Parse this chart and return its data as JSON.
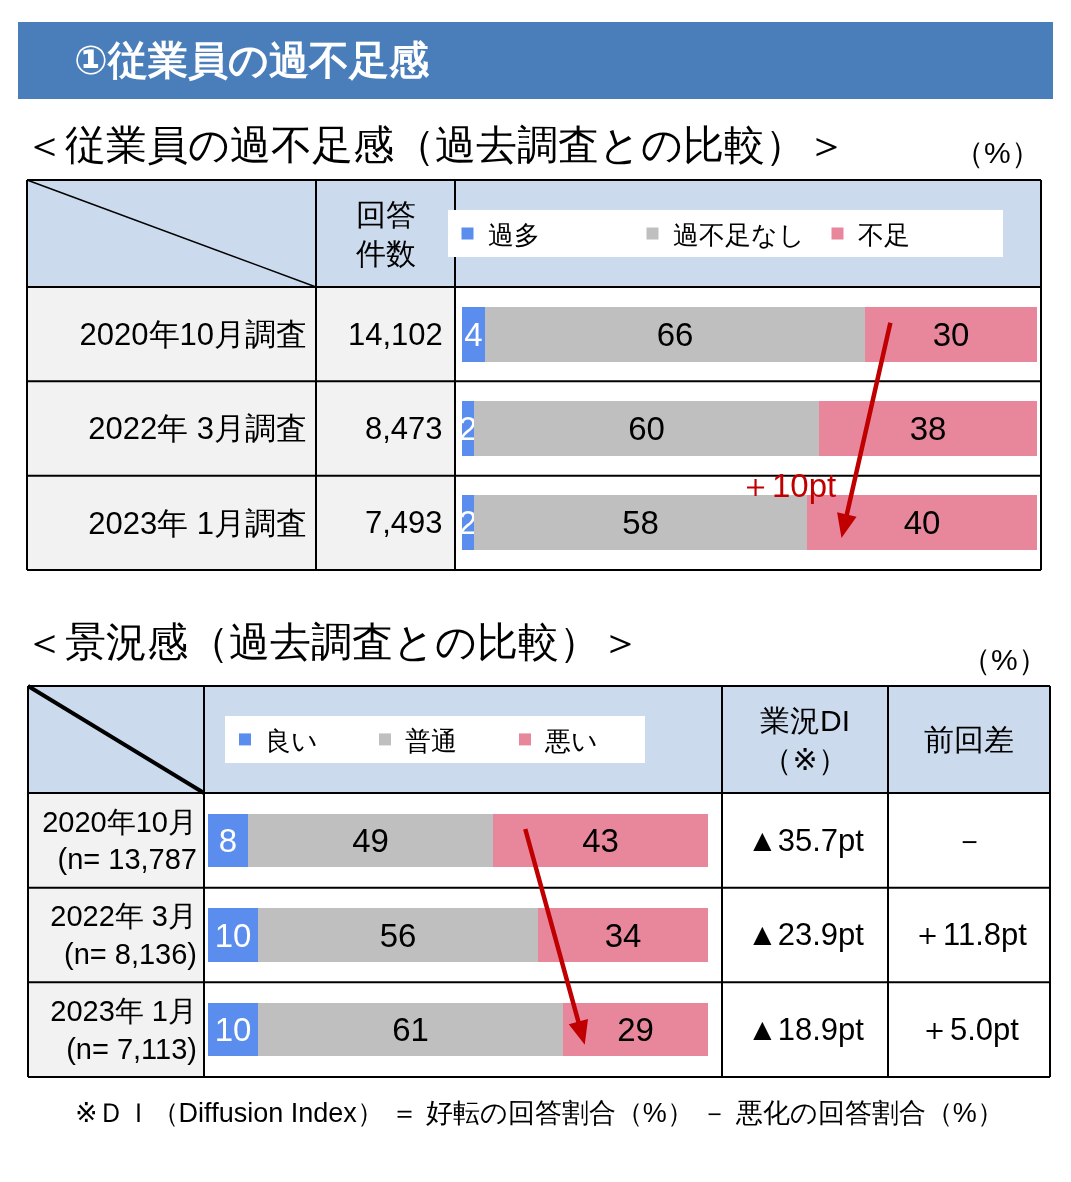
{
  "chart_data": [
    {
      "type": "bar",
      "orientation": "horizontal",
      "stacked": true,
      "title": "①従業員の過不足感",
      "subtitle": "＜従業員の過不足感（過去調査との比較）＞",
      "xlabel": "（%）",
      "categories": [
        "2020年10月調査",
        "2022年 3月調査",
        "2023年 1月調査"
      ],
      "series": [
        {
          "name": "過多",
          "color": "#5b8def",
          "values": [
            4,
            2,
            2
          ]
        },
        {
          "name": "過不足なし",
          "color": "#bfbfbf",
          "values": [
            66,
            60,
            58
          ]
        },
        {
          "name": "不足",
          "color": "#e8879c",
          "values": [
            30,
            38,
            40
          ]
        }
      ],
      "data_labels": true,
      "legend": "top",
      "tick_labels": "y",
      "annotations": [
        "回答件数",
        "14,102",
        "8,473",
        "7,493",
        "＋10pt"
      ]
    },
    {
      "type": "bar",
      "orientation": "horizontal",
      "stacked": true,
      "title": "＜景況感（過去調査との比較）＞",
      "categories": [
        "2020年10月\n(n= 13,787",
        "2022年 3月\n(n= 8,136)",
        "2023年 1月\n(n= 7,113)"
      ],
      "series": [
        {
          "name": "良い",
          "color": "#5b8def",
          "values": [
            8,
            10,
            10
          ]
        },
        {
          "name": "普通",
          "color": "#bfbfbf",
          "values": [
            49,
            56,
            61
          ]
        },
        {
          "name": "悪い",
          "color": "#e8879c",
          "values": [
            43,
            34,
            29
          ]
        }
      ],
      "data_labels": true,
      "legend": "top",
      "tick_labels": "y",
      "annotations": [
        "業況DI（※）",
        "▲35.7pt",
        "▲23.9pt",
        "▲18.9pt",
        "前回差",
        "－",
        "＋11.8pt",
        "＋5.0pt",
        "（%）",
        "※ＤＩ（Diffusion Index） ＝ 好転の回答割合（%） － 悪化の回答割合（%）"
      ]
    }
  ]
}
